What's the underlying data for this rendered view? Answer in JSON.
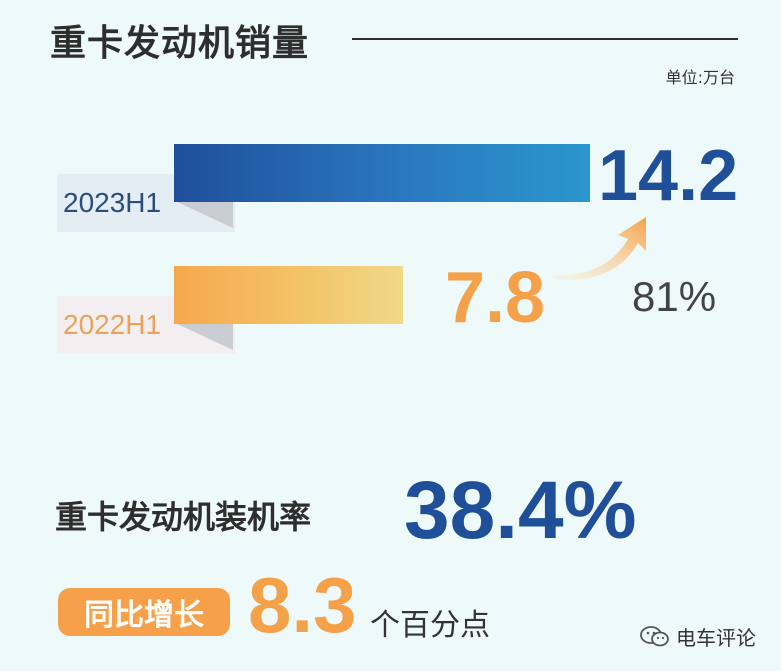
{
  "header": {
    "title": "重卡发动机销量",
    "unit": "单位:万台"
  },
  "chart_data": {
    "type": "bar",
    "orientation": "horizontal",
    "categories": [
      "2023H1",
      "2022H1"
    ],
    "values": [
      14.2,
      7.8
    ],
    "value_labels": [
      "14.2",
      "7.8"
    ],
    "growth_label": "81%",
    "colors": [
      "#1e4f98",
      "#f4a14a"
    ]
  },
  "rate": {
    "label": "重卡发动机装机率",
    "value": "38.4%"
  },
  "yoy": {
    "badge": "同比增长",
    "value": "8.3",
    "unit": "个百分点"
  },
  "watermark": {
    "text": "电车评论",
    "icon": "wechat-icon"
  }
}
